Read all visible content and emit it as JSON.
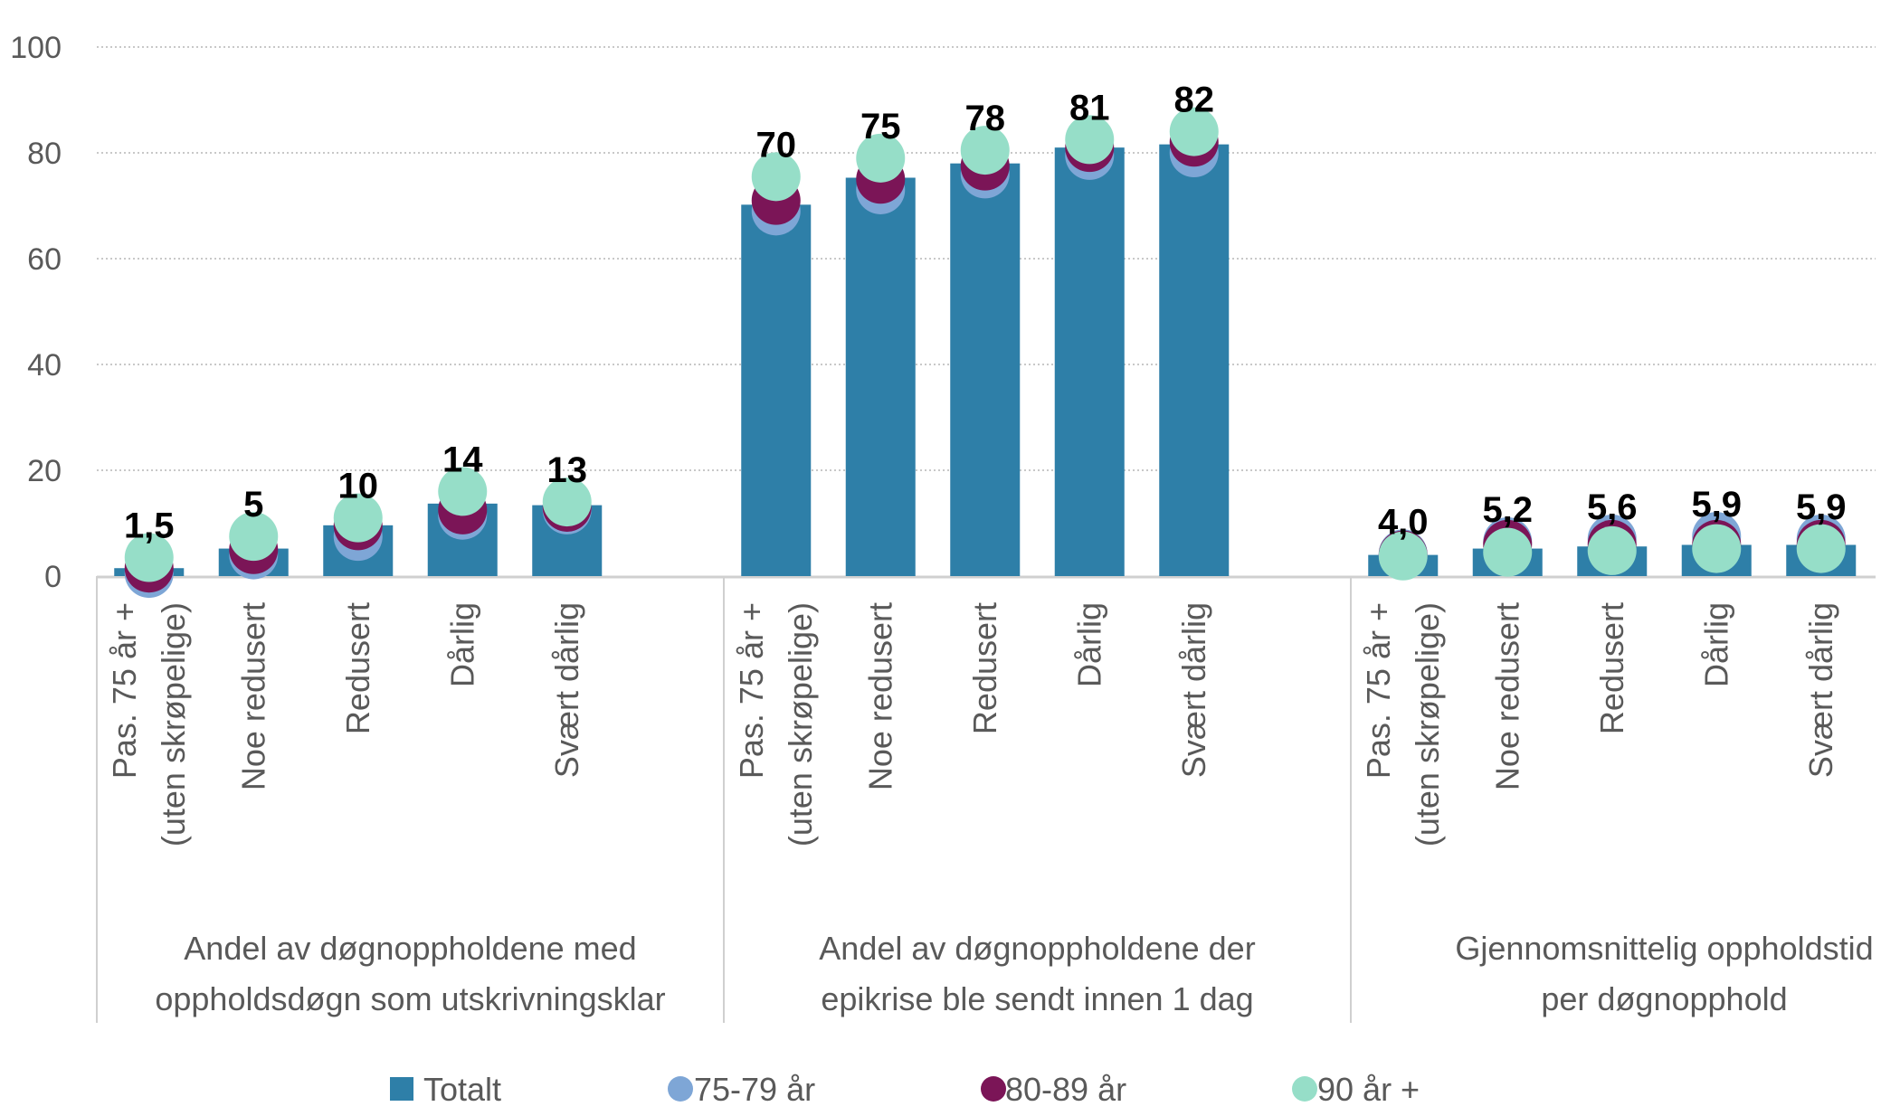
{
  "chart_data": {
    "type": "bar",
    "ylim": [
      0,
      100
    ],
    "yticks": [
      0,
      20,
      40,
      60,
      80,
      100
    ],
    "grid": true,
    "legend_placement": "bottom",
    "groups": [
      {
        "label": [
          "Andel av døgnoppholdene med",
          "oppholdsdøgn som utskrivningsklar"
        ],
        "categories": [
          [
            "Pas. 75 år +",
            "(uten skrøpelige)"
          ],
          [
            "Noe redusert"
          ],
          [
            "Redusert"
          ],
          [
            "Dårlig"
          ],
          [
            "Svært dårlig"
          ]
        ],
        "data_labels": [
          "1,5",
          "5",
          "10",
          "14",
          "13"
        ]
      },
      {
        "label": [
          "Andel av døgnoppholdene der",
          "epikrise ble sendt innen 1 dag"
        ],
        "categories": [
          [
            "Pas. 75 år +",
            "(uten skrøpelige)"
          ],
          [
            "Noe redusert"
          ],
          [
            "Redusert"
          ],
          [
            "Dårlig"
          ],
          [
            "Svært dårlig"
          ]
        ],
        "data_labels": [
          "70",
          "75",
          "78",
          "81",
          "82"
        ]
      },
      {
        "label": [
          "Gjennomsnittelig oppholdstid",
          "per døgnopphold"
        ],
        "categories": [
          [
            "Pas. 75 år +",
            "(uten skrøpelige)"
          ],
          [
            "Noe redusert"
          ],
          [
            "Redusert"
          ],
          [
            "Dårlig"
          ],
          [
            "Svært dårlig"
          ]
        ],
        "data_labels": [
          "4,0",
          "5,2",
          "5,6",
          "5,9",
          "5,9"
        ]
      }
    ],
    "series": [
      {
        "name": "Totalt",
        "kind": "bar",
        "color": "#2E7FA8",
        "values": [
          [
            1.5,
            5.2,
            9.6,
            13.7,
            13.4
          ],
          [
            70.2,
            75.3,
            78.0,
            81.0,
            81.6
          ],
          [
            4.0,
            5.2,
            5.6,
            5.9,
            5.9
          ]
        ]
      },
      {
        "name": "75-79 år",
        "kind": "dot",
        "color": "#7EA6D6",
        "values": [
          [
            0.5,
            4.0,
            7.5,
            11.5,
            12.5
          ],
          [
            69.0,
            73.0,
            76.0,
            79.5,
            80.0
          ],
          [
            4.2,
            6.5,
            7.0,
            7.5,
            7.0
          ]
        ]
      },
      {
        "name": "80-89 år",
        "kind": "dot",
        "color": "#7B1557",
        "values": [
          [
            1.5,
            5.0,
            9.5,
            12.5,
            13.0
          ],
          [
            71.0,
            75.0,
            77.5,
            81.0,
            82.0
          ],
          [
            4.0,
            6.0,
            6.0,
            6.0,
            6.0
          ]
        ]
      },
      {
        "name": "90 år +",
        "kind": "dot",
        "color": "#96DEC8",
        "values": [
          [
            3.5,
            7.5,
            11.0,
            16.0,
            14.0
          ],
          [
            75.5,
            79.0,
            80.5,
            82.5,
            84.0
          ],
          [
            3.8,
            4.5,
            4.8,
            5.2,
            5.2
          ]
        ]
      }
    ]
  }
}
